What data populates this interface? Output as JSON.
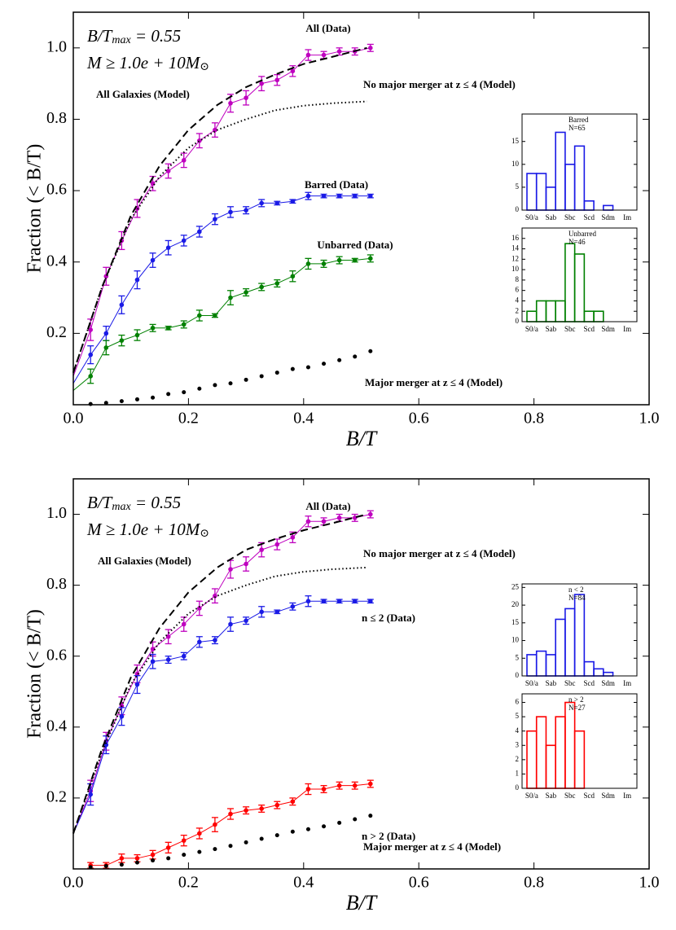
{
  "chart_data": [
    {
      "type": "line",
      "xlabel": "B/T",
      "ylabel": "Fraction (< B/T)",
      "xlim": [
        0,
        1
      ],
      "ylim": [
        0,
        1.1
      ],
      "xticks": [
        {
          "value": 0,
          "label": "0.0"
        },
        0.2,
        0.4,
        0.6,
        0.8,
        {
          "value": 1,
          "label": "1.0"
        }
      ],
      "yticks": [
        0.2,
        0.4,
        0.6,
        0.8,
        {
          "value": 1,
          "label": "1.0"
        }
      ],
      "annotations": [
        {
          "parts": [
            "B/T",
            "max",
            " = 0.55"
          ]
        },
        {
          "parts": [
            "M ≥ 1.0e + 10M",
            "⊙"
          ]
        }
      ],
      "series": [
        {
          "name": "All (Data)",
          "color": "#bf00bf",
          "style": "errorbar",
          "x": [
            0,
            0.03,
            0.057,
            0.084,
            0.111,
            0.138,
            0.165,
            0.192,
            0.219,
            0.246,
            0.273,
            0.3,
            0.327,
            0.354,
            0.381,
            0.408,
            0.435,
            0.462,
            0.489,
            0.516
          ],
          "values": [
            0.08,
            0.21,
            0.36,
            0.46,
            0.55,
            0.62,
            0.655,
            0.685,
            0.74,
            0.77,
            0.845,
            0.86,
            0.9,
            0.91,
            0.935,
            0.98,
            0.98,
            0.99,
            0.99,
            1.0
          ],
          "errors": [
            null,
            0.03,
            0.025,
            0.025,
            0.025,
            0.02,
            0.02,
            0.02,
            0.02,
            0.02,
            0.025,
            0.02,
            0.02,
            0.015,
            0.015,
            0.015,
            0.01,
            0.01,
            0.01,
            0.01
          ]
        },
        {
          "name": "Barred (Data)",
          "color": "#1a1ae6",
          "style": "errorbar",
          "x": [
            0,
            0.03,
            0.057,
            0.084,
            0.111,
            0.138,
            0.165,
            0.192,
            0.219,
            0.246,
            0.273,
            0.3,
            0.327,
            0.354,
            0.381,
            0.408,
            0.435,
            0.462,
            0.489,
            0.516
          ],
          "values": [
            0.06,
            0.14,
            0.2,
            0.28,
            0.35,
            0.405,
            0.44,
            0.46,
            0.485,
            0.52,
            0.54,
            0.545,
            0.565,
            0.565,
            0.57,
            0.585,
            0.585,
            0.585,
            0.585,
            0.585
          ],
          "errors": [
            null,
            0.025,
            0.02,
            0.025,
            0.025,
            0.02,
            0.02,
            0.015,
            0.015,
            0.015,
            0.015,
            0.01,
            0.01,
            0.005,
            0.005,
            0.01,
            0.005,
            0.005,
            0.005,
            0.005
          ]
        },
        {
          "name": "Unbarred (Data)",
          "color": "#008000",
          "style": "errorbar",
          "x": [
            0,
            0.03,
            0.057,
            0.084,
            0.111,
            0.138,
            0.165,
            0.192,
            0.219,
            0.246,
            0.273,
            0.3,
            0.327,
            0.354,
            0.381,
            0.408,
            0.435,
            0.462,
            0.489,
            0.516
          ],
          "values": [
            0.04,
            0.08,
            0.16,
            0.18,
            0.195,
            0.215,
            0.215,
            0.225,
            0.25,
            0.25,
            0.3,
            0.315,
            0.33,
            0.34,
            0.36,
            0.395,
            0.395,
            0.405,
            0.405,
            0.41
          ],
          "errors": [
            null,
            0.02,
            0.02,
            0.015,
            0.015,
            0.01,
            0.005,
            0.01,
            0.015,
            0.005,
            0.02,
            0.01,
            0.01,
            0.01,
            0.015,
            0.015,
            0.01,
            0.01,
            0.005,
            0.01
          ]
        },
        {
          "name": "All Galaxies (Model)",
          "color": "#000000",
          "style": "dashed",
          "x": [
            0,
            0.05,
            0.1,
            0.15,
            0.2,
            0.25,
            0.3,
            0.35,
            0.4,
            0.45,
            0.51
          ],
          "values": [
            0.09,
            0.33,
            0.53,
            0.67,
            0.77,
            0.84,
            0.89,
            0.925,
            0.955,
            0.975,
            1.0
          ]
        },
        {
          "name": "No major merger at z ≤ 4 (Model)",
          "color": "#000000",
          "style": "dotted",
          "x": [
            0,
            0.05,
            0.1,
            0.15,
            0.2,
            0.25,
            0.3,
            0.35,
            0.4,
            0.45,
            0.51
          ],
          "values": [
            0.09,
            0.33,
            0.52,
            0.64,
            0.72,
            0.77,
            0.8,
            0.825,
            0.838,
            0.845,
            0.85
          ]
        },
        {
          "name": "Major merger at z ≤ 4 (Model)",
          "color": "#000000",
          "style": "dots",
          "x": [
            0.03,
            0.057,
            0.084,
            0.111,
            0.138,
            0.165,
            0.192,
            0.219,
            0.246,
            0.273,
            0.3,
            0.327,
            0.354,
            0.381,
            0.408,
            0.435,
            0.462,
            0.489,
            0.516
          ],
          "values": [
            0.002,
            0.005,
            0.01,
            0.015,
            0.02,
            0.03,
            0.035,
            0.045,
            0.055,
            0.06,
            0.07,
            0.08,
            0.09,
            0.1,
            0.105,
            0.115,
            0.125,
            0.135,
            0.15
          ]
        }
      ]
    },
    {
      "type": "bar",
      "title": "Barred",
      "subtitle": "N=65",
      "color": "#1a1ae6",
      "categories": [
        "S0/a",
        null,
        "Sab",
        null,
        "Sbc",
        null,
        "Scd",
        null,
        "Sdm",
        null,
        "Im"
      ],
      "values": [
        8,
        8,
        5,
        17,
        10,
        14,
        2,
        0,
        1,
        0,
        0
      ],
      "ylim": [
        0,
        21
      ],
      "yticks": [
        0,
        5,
        10,
        15
      ]
    },
    {
      "type": "bar",
      "title": "Unbarred",
      "subtitle": "N=46",
      "color": "#008000",
      "categories": [
        "S0/a",
        null,
        "Sab",
        null,
        "Sbc",
        null,
        "Scd",
        null,
        "Sdm",
        null,
        "Im"
      ],
      "values": [
        2,
        4,
        4,
        4,
        15,
        13,
        2,
        2,
        0,
        0,
        0
      ],
      "ylim": [
        0,
        18
      ],
      "yticks": [
        0,
        2,
        4,
        6,
        8,
        10,
        12,
        14,
        16
      ]
    },
    {
      "type": "line",
      "xlabel": "B/T",
      "ylabel": "Fraction (< B/T)",
      "xlim": [
        0,
        1
      ],
      "ylim": [
        0,
        1.1
      ],
      "xticks": [
        {
          "value": 0,
          "label": "0.0"
        },
        0.2,
        0.4,
        0.6,
        0.8,
        {
          "value": 1,
          "label": "1.0"
        }
      ],
      "yticks": [
        0.2,
        0.4,
        0.6,
        0.8,
        {
          "value": 1,
          "label": "1.0"
        }
      ],
      "annotations": [
        {
          "parts": [
            "B/T",
            "max",
            " = 0.55"
          ]
        },
        {
          "parts": [
            "M ≥ 1.0e + 10M",
            "⊙"
          ]
        }
      ],
      "series": [
        {
          "name": "All (Data)",
          "color": "#bf00bf",
          "style": "errorbar",
          "x": [
            0,
            0.03,
            0.057,
            0.084,
            0.111,
            0.138,
            0.165,
            0.192,
            0.219,
            0.246,
            0.273,
            0.3,
            0.327,
            0.354,
            0.381,
            0.408,
            0.435,
            0.462,
            0.489,
            0.516
          ],
          "values": [
            0.1,
            0.22,
            0.36,
            0.46,
            0.55,
            0.62,
            0.655,
            0.69,
            0.735,
            0.77,
            0.845,
            0.86,
            0.9,
            0.915,
            0.935,
            0.98,
            0.98,
            0.99,
            0.99,
            1.0
          ],
          "errors": [
            null,
            0.03,
            0.025,
            0.025,
            0.025,
            0.02,
            0.02,
            0.02,
            0.02,
            0.02,
            0.025,
            0.02,
            0.02,
            0.015,
            0.015,
            0.015,
            0.01,
            0.01,
            0.01,
            0.01
          ]
        },
        {
          "name": "n ≤ 2 (Data)",
          "color": "#1a1ae6",
          "style": "errorbar",
          "x": [
            0,
            0.03,
            0.057,
            0.084,
            0.111,
            0.138,
            0.165,
            0.192,
            0.219,
            0.246,
            0.273,
            0.3,
            0.327,
            0.354,
            0.381,
            0.408,
            0.435,
            0.462,
            0.489,
            0.516
          ],
          "values": [
            0.1,
            0.21,
            0.35,
            0.43,
            0.52,
            0.585,
            0.59,
            0.6,
            0.64,
            0.645,
            0.69,
            0.7,
            0.725,
            0.725,
            0.74,
            0.755,
            0.755,
            0.755,
            0.755,
            0.755
          ],
          "errors": [
            null,
            0.03,
            0.025,
            0.025,
            0.025,
            0.02,
            0.01,
            0.01,
            0.015,
            0.01,
            0.02,
            0.01,
            0.015,
            0.005,
            0.01,
            0.015,
            0.005,
            0.005,
            0.005,
            0.005
          ]
        },
        {
          "name": "n > 2 (Data)",
          "color": "#ff0000",
          "style": "errorbar",
          "x": [
            0.03,
            0.057,
            0.084,
            0.111,
            0.138,
            0.165,
            0.192,
            0.219,
            0.246,
            0.273,
            0.3,
            0.327,
            0.354,
            0.381,
            0.408,
            0.435,
            0.462,
            0.489,
            0.516
          ],
          "values": [
            0.01,
            0.01,
            0.03,
            0.03,
            0.04,
            0.06,
            0.08,
            0.1,
            0.125,
            0.155,
            0.165,
            0.17,
            0.18,
            0.19,
            0.225,
            0.225,
            0.235,
            0.235,
            0.24
          ],
          "errors": [
            0.008,
            0.008,
            0.012,
            0.01,
            0.012,
            0.015,
            0.015,
            0.015,
            0.02,
            0.015,
            0.01,
            0.01,
            0.01,
            0.01,
            0.015,
            0.01,
            0.01,
            0.01,
            0.01
          ]
        },
        {
          "name": "All Galaxies (Model)",
          "color": "#000000",
          "style": "dashed",
          "x": [
            0,
            0.05,
            0.1,
            0.15,
            0.2,
            0.25,
            0.3,
            0.35,
            0.4,
            0.45,
            0.51
          ],
          "values": [
            0.1,
            0.34,
            0.54,
            0.68,
            0.78,
            0.85,
            0.9,
            0.93,
            0.955,
            0.975,
            1.0
          ]
        },
        {
          "name": "No major merger at z ≤ 4 (Model)",
          "color": "#000000",
          "style": "dotted",
          "x": [
            0,
            0.05,
            0.1,
            0.15,
            0.2,
            0.25,
            0.3,
            0.35,
            0.4,
            0.45,
            0.51
          ],
          "values": [
            0.1,
            0.33,
            0.52,
            0.64,
            0.72,
            0.77,
            0.8,
            0.825,
            0.838,
            0.845,
            0.85
          ]
        },
        {
          "name": "Major merger at z ≤ 4 (Model)",
          "color": "#000000",
          "style": "dots",
          "x": [
            0.03,
            0.057,
            0.084,
            0.111,
            0.138,
            0.165,
            0.192,
            0.219,
            0.246,
            0.273,
            0.3,
            0.327,
            0.354,
            0.381,
            0.408,
            0.435,
            0.462,
            0.489,
            0.516
          ],
          "values": [
            0.005,
            0.008,
            0.012,
            0.018,
            0.024,
            0.03,
            0.04,
            0.048,
            0.056,
            0.065,
            0.075,
            0.085,
            0.095,
            0.105,
            0.112,
            0.12,
            0.13,
            0.14,
            0.15
          ]
        }
      ]
    },
    {
      "type": "bar",
      "title": "n < 2",
      "subtitle": "N=84",
      "color": "#1a1ae6",
      "categories": [
        "S0/a",
        null,
        "Sab",
        null,
        "Sbc",
        null,
        "Scd",
        null,
        "Sdm",
        null,
        "Im"
      ],
      "values": [
        6,
        7,
        6,
        16,
        19,
        23,
        4,
        2,
        1,
        0,
        0
      ],
      "ylim": [
        0,
        26
      ],
      "yticks": [
        0,
        5,
        10,
        15,
        20,
        25
      ]
    },
    {
      "type": "bar",
      "title": "n > 2",
      "subtitle": "N=27",
      "color": "#ff0000",
      "categories": [
        "S0/a",
        null,
        "Sab",
        null,
        "Sbc",
        null,
        "Scd",
        null,
        "Sdm",
        null,
        "Im"
      ],
      "values": [
        4,
        5,
        3,
        5,
        6,
        4,
        0,
        0,
        0,
        0,
        0
      ],
      "ylim": [
        0,
        6.6
      ],
      "yticks": [
        0,
        1,
        2,
        3,
        4,
        5,
        6
      ]
    }
  ]
}
